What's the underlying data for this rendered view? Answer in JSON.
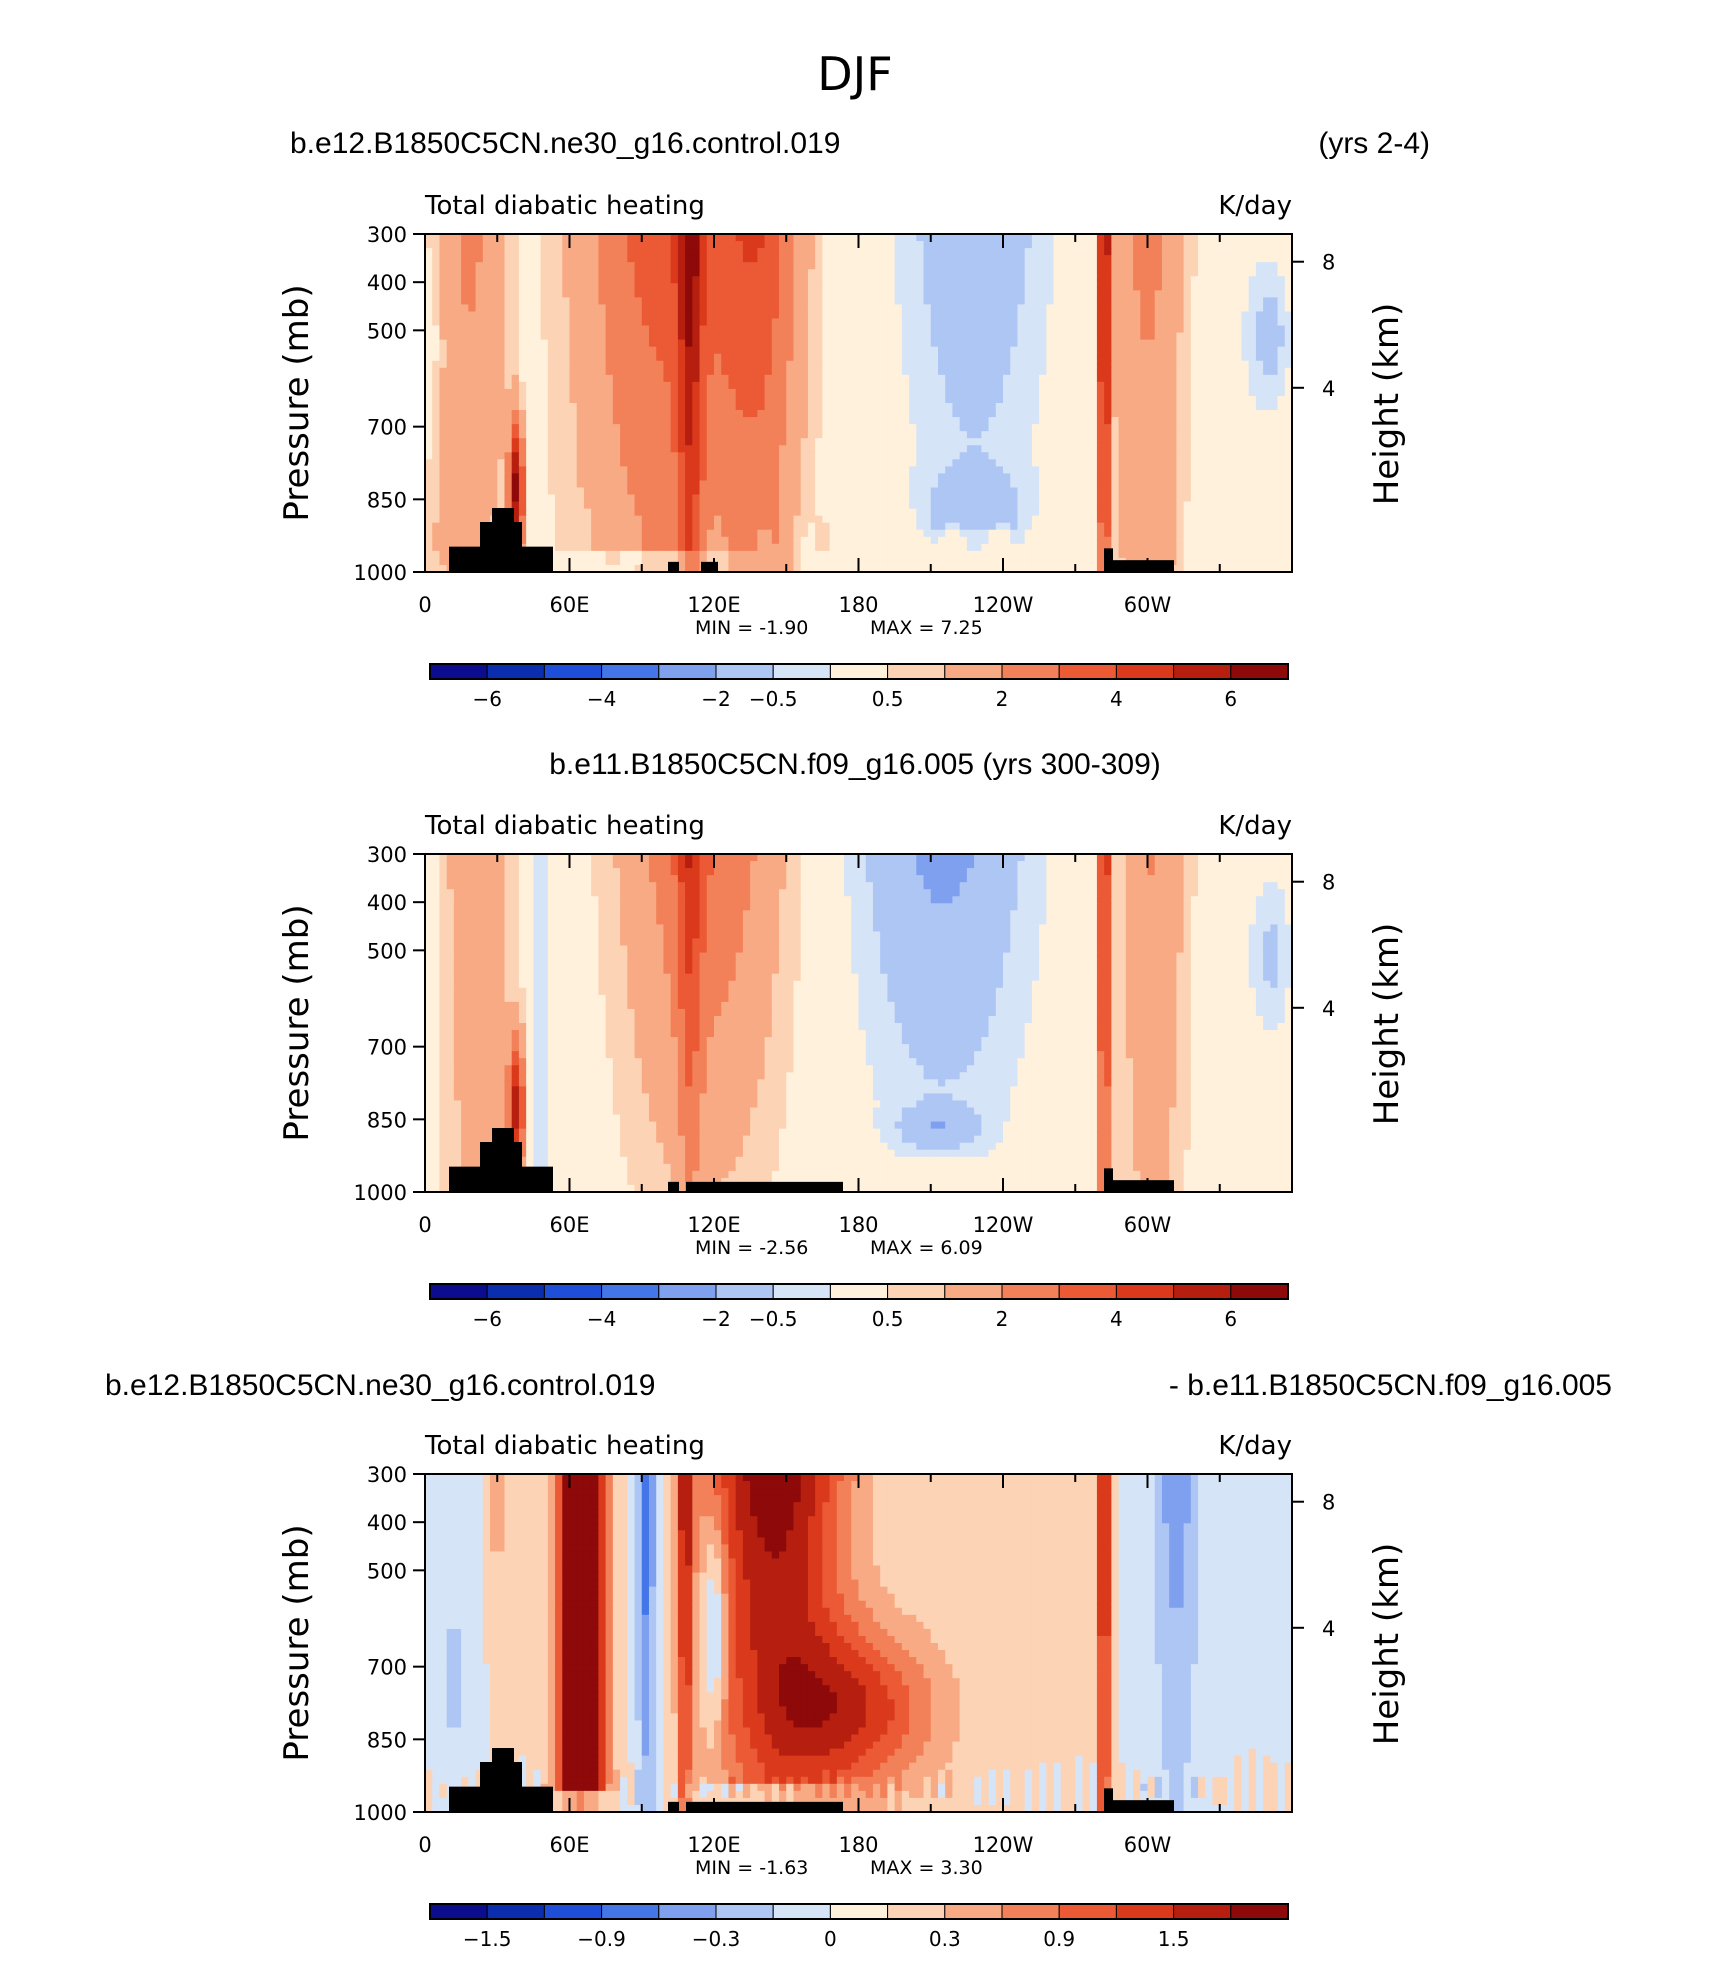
{
  "title": "DJF",
  "chart_data": [
    {
      "type": "heatmap",
      "case_title": "b.e12.B1850C5CN.ne30_g16.control.019",
      "years": "(yrs 2-4)",
      "left_label": "Total diabatic heating",
      "units": "K/day",
      "ylabel": "Pressure (mb)",
      "ylabel_right": "Height (km)",
      "x_ticks": [
        "0",
        "60E",
        "120E",
        "180",
        "120W",
        "60W"
      ],
      "y_ticks": [
        "300",
        "400",
        "500",
        "700",
        "850",
        "1000"
      ],
      "y_right_ticks": [
        "8",
        "4"
      ],
      "min_label": "MIN = -1.90",
      "max_label": "MAX = 7.25",
      "min": -1.9,
      "max": 7.25,
      "colorbar_labels": [
        "−6",
        "−4",
        "−2",
        "−0.5",
        "0.5",
        "2",
        "4",
        "6"
      ],
      "colors": [
        "#0c0c8e",
        "#0b2eae",
        "#1f4fd8",
        "#4476e8",
        "#7ea0ef",
        "#aec6f4",
        "#d6e4f8",
        "#fff1dc",
        "#fcd3b4",
        "#f8aa84",
        "#f28159",
        "#eb5a35",
        "#da3a1b",
        "#b61f0f",
        "#8e0909"
      ]
    },
    {
      "type": "heatmap",
      "case_title": "b.e11.B1850C5CN.f09_g16.005 (yrs 300-309)",
      "left_label": "Total diabatic heating",
      "units": "K/day",
      "ylabel": "Pressure (mb)",
      "ylabel_right": "Height (km)",
      "x_ticks": [
        "0",
        "60E",
        "120E",
        "180",
        "120W",
        "60W"
      ],
      "y_ticks": [
        "300",
        "400",
        "500",
        "700",
        "850",
        "1000"
      ],
      "y_right_ticks": [
        "8",
        "4"
      ],
      "min_label": "MIN = -2.56",
      "max_label": "MAX = 6.09",
      "min": -2.56,
      "max": 6.09,
      "colorbar_labels": [
        "−6",
        "−4",
        "−2",
        "−0.5",
        "0.5",
        "2",
        "4",
        "6"
      ],
      "colors": [
        "#0c0c8e",
        "#0b2eae",
        "#1f4fd8",
        "#4476e8",
        "#7ea0ef",
        "#aec6f4",
        "#d6e4f8",
        "#fff1dc",
        "#fcd3b4",
        "#f8aa84",
        "#f28159",
        "#eb5a35",
        "#da3a1b",
        "#b61f0f",
        "#8e0909"
      ]
    },
    {
      "type": "heatmap",
      "case_title": "b.e12.B1850C5CN.ne30_g16.control.019",
      "case_title_right": "- b.e11.B1850C5CN.f09_g16.005",
      "left_label": "Total diabatic heating",
      "units": "K/day",
      "ylabel": "Pressure (mb)",
      "ylabel_right": "Height (km)",
      "x_ticks": [
        "0",
        "60E",
        "120E",
        "180",
        "120W",
        "60W"
      ],
      "y_ticks": [
        "300",
        "400",
        "500",
        "700",
        "850",
        "1000"
      ],
      "y_right_ticks": [
        "8",
        "4"
      ],
      "min_label": "MIN = -1.63",
      "max_label": "MAX = 3.30",
      "min": -1.63,
      "max": 3.3,
      "colorbar_labels": [
        "−1.5",
        "−0.9",
        "−0.3",
        "0",
        "0.3",
        "0.9",
        "1.5"
      ],
      "colors": [
        "#0c0c8e",
        "#0b2eae",
        "#1f4fd8",
        "#4476e8",
        "#7ea0ef",
        "#aec6f4",
        "#d6e4f8",
        "#fff1dc",
        "#fcd3b4",
        "#f8aa84",
        "#f28159",
        "#eb5a35",
        "#da3a1b",
        "#b61f0f",
        "#8e0909"
      ]
    }
  ]
}
